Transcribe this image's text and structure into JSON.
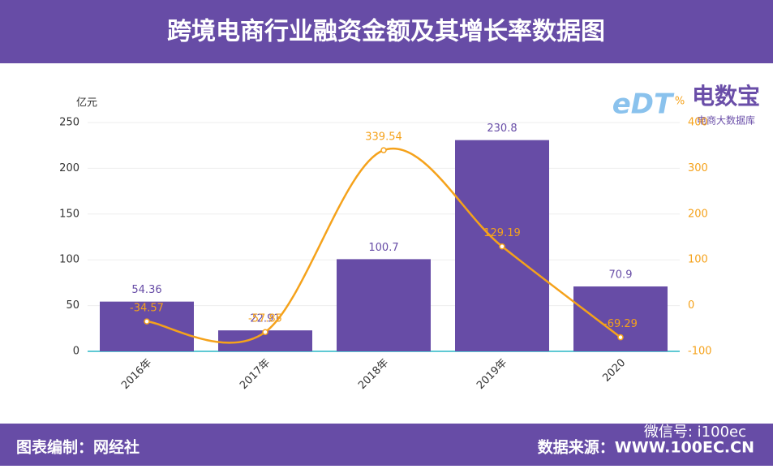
{
  "header": {
    "title": "跨境电商行业融资金额及其增长率数据图"
  },
  "logo": {
    "mark": "eDT",
    "name": "电数宝",
    "tagline": "电商大数据库"
  },
  "chart_data": {
    "type": "bar",
    "y_label": "亿元",
    "y2_label": "%",
    "categories": [
      "2016年",
      "2017年",
      "2018年",
      "2019年",
      "2020"
    ],
    "series": [
      {
        "type": "bar",
        "color": "#674ca6",
        "values": [
          54.36,
          22.91,
          100.7,
          230.8,
          70.9
        ],
        "axis": "y"
      },
      {
        "type": "line",
        "color": "#f5a21b",
        "values": [
          -34.57,
          -57.85,
          339.54,
          129.19,
          -69.29
        ],
        "axis": "y2"
      }
    ],
    "ylim": [
      0,
      250
    ],
    "yticks": [
      0,
      50,
      100,
      150,
      200,
      250
    ],
    "y2lim": [
      -100,
      400
    ],
    "y2ticks": [
      -100,
      0,
      100,
      200,
      300,
      400
    ],
    "grid": true
  },
  "footer": {
    "left": "图表编制：网经社",
    "right": "数据来源：WWW.100EC.CN",
    "wechat": "微信号: i100ec"
  }
}
